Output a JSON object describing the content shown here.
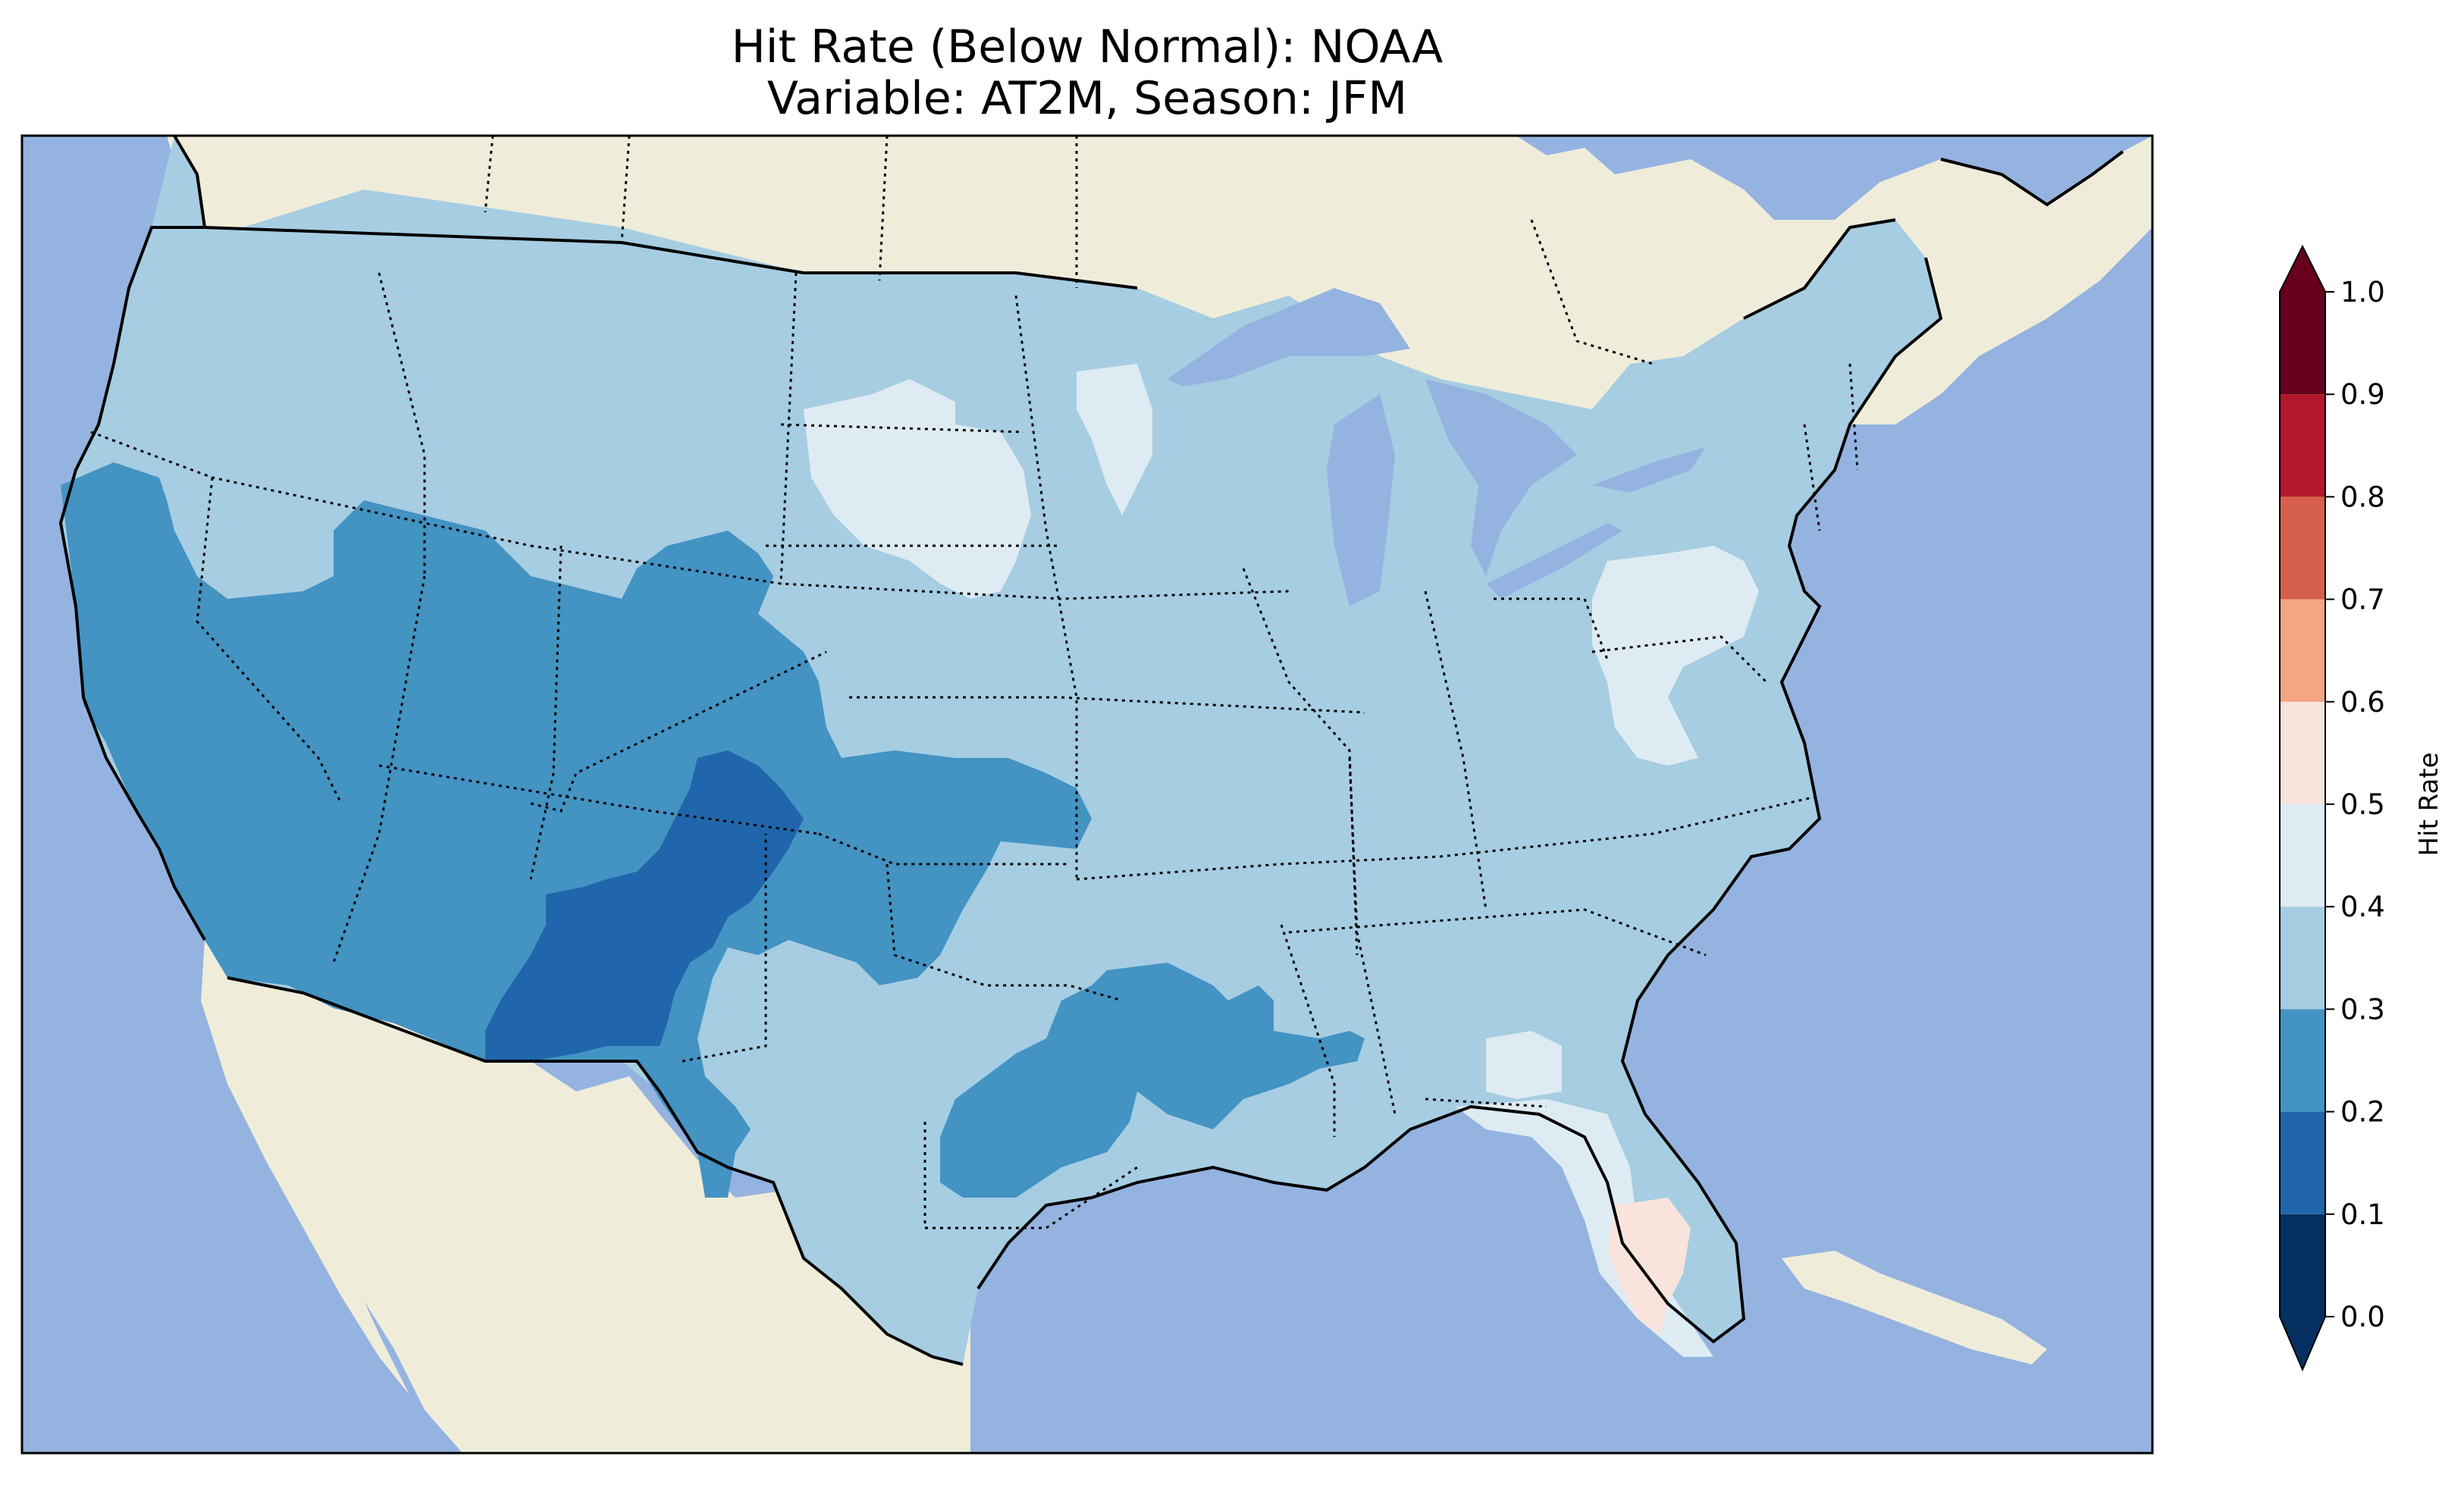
{
  "title": {
    "line1": "Hit Rate (Below Normal): NOAA",
    "line2": "Variable: AT2M, Season: JFM"
  },
  "colors": {
    "ocean": "#95b3e0",
    "land": "#efedda",
    "lakes": "#95b3e0"
  },
  "colorbar": {
    "label": "Hit Rate",
    "extend": "both",
    "ticks": [
      "0.0",
      "0.1",
      "0.2",
      "0.3",
      "0.4",
      "0.5",
      "0.6",
      "0.7",
      "0.8",
      "0.9",
      "1.0"
    ],
    "bins": [
      {
        "range": [
          0.0,
          0.1
        ],
        "color": "#053061"
      },
      {
        "range": [
          0.1,
          0.2
        ],
        "color": "#2166ac"
      },
      {
        "range": [
          0.2,
          0.3
        ],
        "color": "#4393c3"
      },
      {
        "range": [
          0.3,
          0.4
        ],
        "color": "#a6cde2"
      },
      {
        "range": [
          0.4,
          0.5
        ],
        "color": "#deebf2"
      },
      {
        "range": [
          0.5,
          0.6
        ],
        "color": "#f8e4dc"
      },
      {
        "range": [
          0.6,
          0.7
        ],
        "color": "#f4a582"
      },
      {
        "range": [
          0.7,
          0.8
        ],
        "color": "#d6604d"
      },
      {
        "range": [
          0.8,
          0.9
        ],
        "color": "#b2182b"
      },
      {
        "range": [
          0.9,
          1.0
        ],
        "color": "#67001f"
      }
    ]
  },
  "map_regions": [
    {
      "name": "Contiguous US (most areas)",
      "bin": "0.3-0.4"
    },
    {
      "name": "California / Nevada / Arizona / Utah / Colorado",
      "bin": "0.2-0.3"
    },
    {
      "name": "New Mexico / West Texas",
      "bin": "0.1-0.2"
    },
    {
      "name": "Arkansas / Louisiana / East Texas",
      "bin": "0.2-0.3"
    },
    {
      "name": "South Dakota / Nebraska / Minnesota patch",
      "bin": "0.4-0.5"
    },
    {
      "name": "Pennsylvania / Virginia / North Florida",
      "bin": "0.4-0.5"
    },
    {
      "name": "South Florida",
      "bin": "0.5-0.6"
    }
  ]
}
